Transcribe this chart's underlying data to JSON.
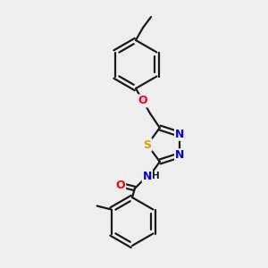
{
  "bg_color": "#eeeeee",
  "bond_color": "#1a1a1a",
  "atom_colors": {
    "O": "#ff0000",
    "N": "#0000ee",
    "S": "#ccaa00",
    "H": "#1a1a1a",
    "C": "#1a1a1a"
  },
  "lw": 1.6,
  "fs": 9.0
}
